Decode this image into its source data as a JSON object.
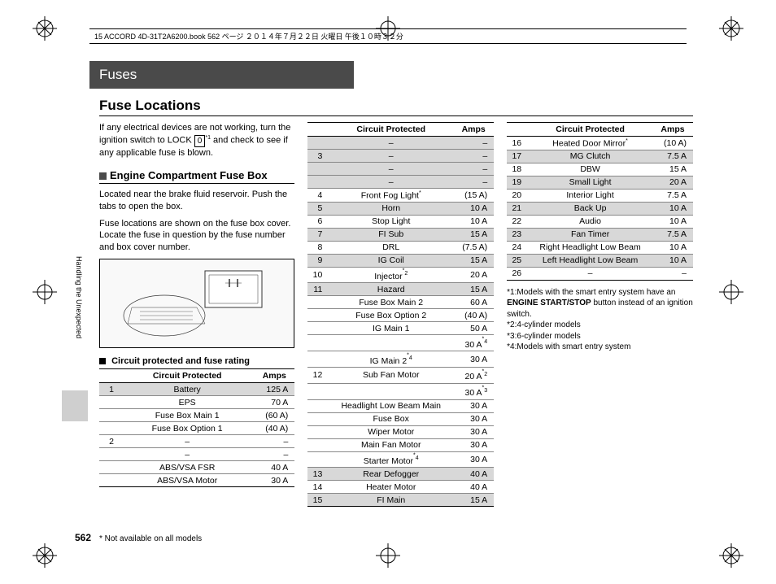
{
  "meta": {
    "header": "15 ACCORD 4D-31T2A6200.book  562 ページ  ２０１４年７月２２日  火曜日  午後１０時３２分",
    "fuses_bar": "Fuses",
    "title": "Fuse Locations",
    "side_label": "Handling the Unexpected",
    "page_num": "562",
    "footnote": "* Not available on all models"
  },
  "intro": {
    "line1": "If any electrical devices are not working, turn the ignition switch to LOCK ",
    "lock": "0",
    "sup1": "*1",
    "line2": " and check to see if any applicable fuse is blown."
  },
  "sect1": {
    "head": "Engine Compartment Fuse Box",
    "desc1": "Located near the brake fluid reservoir. Push the tabs to open the box.",
    "desc2": "Fuse locations are shown on the fuse box cover. Locate the fuse in question by the fuse number and box cover number.",
    "subhead": "Circuit protected and fuse rating"
  },
  "th": {
    "cp": "Circuit Protected",
    "amps": "Amps"
  },
  "t1": [
    {
      "n": "1",
      "c": "Battery",
      "a": "125 A",
      "s": true
    },
    {
      "n": "",
      "c": "EPS",
      "a": "70 A"
    },
    {
      "n": "",
      "c": "Fuse Box Main 1",
      "a": "(60 A)"
    },
    {
      "n": "",
      "c": "Fuse Box Option 1",
      "a": "(40 A)"
    },
    {
      "n": "2",
      "c": "–",
      "a": "–"
    },
    {
      "n": "",
      "c": "–",
      "a": "–"
    },
    {
      "n": "",
      "c": "ABS/VSA FSR",
      "a": "40 A"
    },
    {
      "n": "",
      "c": "ABS/VSA Motor",
      "a": "30 A"
    }
  ],
  "t2": [
    {
      "n": "",
      "c": "–",
      "a": "–",
      "s": true
    },
    {
      "n": "3",
      "c": "–",
      "a": "–",
      "s": true
    },
    {
      "n": "",
      "c": "–",
      "a": "–",
      "s": true
    },
    {
      "n": "",
      "c": "–",
      "a": "–",
      "s": true
    },
    {
      "n": "4",
      "c": "Front Fog Light*",
      "a": "(15 A)"
    },
    {
      "n": "5",
      "c": "Horn",
      "a": "10 A",
      "s": true
    },
    {
      "n": "6",
      "c": "Stop Light",
      "a": "10 A"
    },
    {
      "n": "7",
      "c": "FI Sub",
      "a": "15 A",
      "s": true
    },
    {
      "n": "8",
      "c": "DRL",
      "a": "(7.5 A)"
    },
    {
      "n": "9",
      "c": "IG Coil",
      "a": "15 A",
      "s": true
    },
    {
      "n": "10",
      "c": "Injector*2",
      "a": "20 A"
    },
    {
      "n": "11",
      "c": "Hazard",
      "a": "15 A",
      "s": true
    },
    {
      "n": "",
      "c": "Fuse Box Main 2",
      "a": "60 A"
    },
    {
      "n": "",
      "c": "Fuse Box Option 2",
      "a": "(40 A)"
    },
    {
      "n": "",
      "c": "IG Main 1",
      "a": "50 A"
    },
    {
      "n": "",
      "c": "",
      "a": "30 A*4"
    },
    {
      "n": "",
      "c": "IG Main 2*4",
      "a": "30 A"
    },
    {
      "n": "12",
      "c": "Sub Fan Motor",
      "a": "20 A*2"
    },
    {
      "n": "",
      "c": "",
      "a": "30 A*3"
    },
    {
      "n": "",
      "c": "Headlight Low Beam Main",
      "a": "30 A"
    },
    {
      "n": "",
      "c": "Fuse Box",
      "a": "30 A"
    },
    {
      "n": "",
      "c": "Wiper Motor",
      "a": "30 A"
    },
    {
      "n": "",
      "c": "Main Fan Motor",
      "a": "30 A"
    },
    {
      "n": "",
      "c": "Starter Motor*4",
      "a": "30 A"
    },
    {
      "n": "13",
      "c": "Rear Defogger",
      "a": "40 A",
      "s": true
    },
    {
      "n": "14",
      "c": "Heater Motor",
      "a": "40 A"
    },
    {
      "n": "15",
      "c": "FI Main",
      "a": "15 A",
      "s": true
    }
  ],
  "t3": [
    {
      "n": "16",
      "c": "Heated Door Mirror*",
      "a": "(10 A)"
    },
    {
      "n": "17",
      "c": "MG Clutch",
      "a": "7.5 A",
      "s": true
    },
    {
      "n": "18",
      "c": "DBW",
      "a": "15 A"
    },
    {
      "n": "19",
      "c": "Small Light",
      "a": "20 A",
      "s": true
    },
    {
      "n": "20",
      "c": "Interior Light",
      "a": "7.5 A"
    },
    {
      "n": "21",
      "c": "Back Up",
      "a": "10 A",
      "s": true
    },
    {
      "n": "22",
      "c": "Audio",
      "a": "10 A"
    },
    {
      "n": "23",
      "c": "Fan Timer",
      "a": "7.5 A",
      "s": true
    },
    {
      "n": "24",
      "c": "Right Headlight Low Beam",
      "a": "10 A"
    },
    {
      "n": "25",
      "c": "Left Headlight Low Beam",
      "a": "10 A",
      "s": true
    },
    {
      "n": "26",
      "c": "–",
      "a": "–"
    }
  ],
  "notes": {
    "n1a": "*1:Models with the smart entry system have an ",
    "n1b": "ENGINE START/STOP",
    "n1c": " button instead of an ignition switch.",
    "n2": "*2:4-cylinder models",
    "n3": "*3:6-cylinder models",
    "n4": "*4:Models with smart entry system"
  }
}
